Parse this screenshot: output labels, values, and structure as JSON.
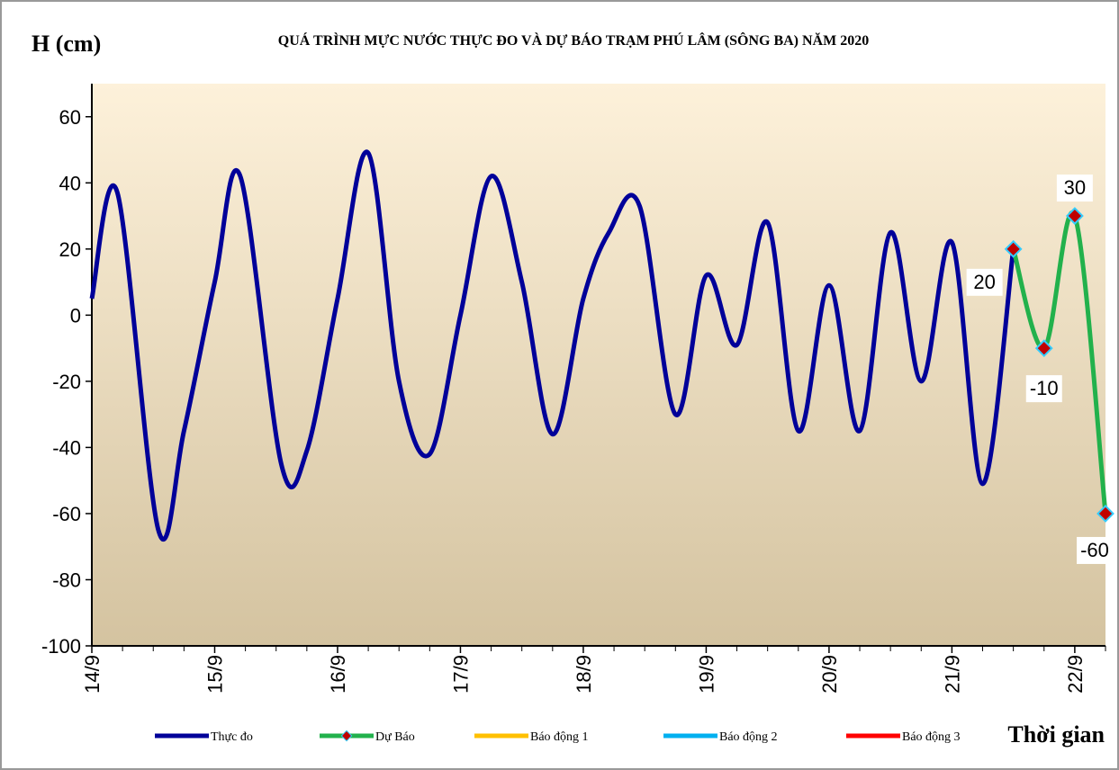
{
  "chart_data": {
    "type": "line",
    "title": "QUÁ TRÌNH MỰC NƯỚC THỰC ĐO VÀ DỰ BÁO TRẠM  PHÚ LÂM (SÔNG BA) NĂM  2020",
    "y_label": "H (cm)",
    "x_label": "Thời gian",
    "xlim": [
      0,
      198
    ],
    "xticks": [
      {
        "value": 0,
        "label": "14/9"
      },
      {
        "value": 24,
        "label": "15/9"
      },
      {
        "value": 48,
        "label": "16/9"
      },
      {
        "value": 72,
        "label": "17/9"
      },
      {
        "value": 96,
        "label": "18/9"
      },
      {
        "value": 120,
        "label": "19/9"
      },
      {
        "value": 144,
        "label": "20/9"
      },
      {
        "value": 168,
        "label": "21/9"
      },
      {
        "value": 192,
        "label": "22/9"
      }
    ],
    "ylim": [
      -100,
      70
    ],
    "yticks": [
      -100,
      -80,
      -60,
      -40,
      -20,
      0,
      20,
      40,
      60
    ],
    "series": [
      {
        "name": "Thực đo",
        "color": "#000099",
        "x": [
          0,
          5,
          13,
          18,
          24,
          29,
          37,
          42,
          48,
          54,
          60,
          66,
          72,
          78,
          84,
          90,
          96,
          101,
          107,
          114,
          120,
          126,
          132,
          138,
          144,
          150,
          156,
          162,
          168,
          174,
          180
        ],
        "values": [
          5,
          37,
          -65,
          -35,
          10,
          42,
          -45,
          -41,
          5,
          49,
          -20,
          -42,
          0,
          42,
          10,
          -36,
          5,
          25,
          33,
          -30,
          12,
          -9,
          28,
          -35,
          9,
          -35,
          25,
          -20,
          22,
          -51,
          20
        ]
      },
      {
        "name": "Dự Báo",
        "color": "#22b14c",
        "marker_color": "#c00000",
        "marker_edge": "#33ccff",
        "x": [
          180,
          186,
          192,
          198
        ],
        "values": [
          20,
          -10,
          30,
          -60
        ]
      },
      {
        "name": "Báo động 1",
        "color": "#ffc000",
        "x": [],
        "values": []
      },
      {
        "name": "Báo động 2",
        "color": "#00b0f0",
        "x": [],
        "values": []
      },
      {
        "name": "Báo động 3",
        "color": "#ff0000",
        "x": [],
        "values": []
      }
    ],
    "data_labels_series": 1
  }
}
